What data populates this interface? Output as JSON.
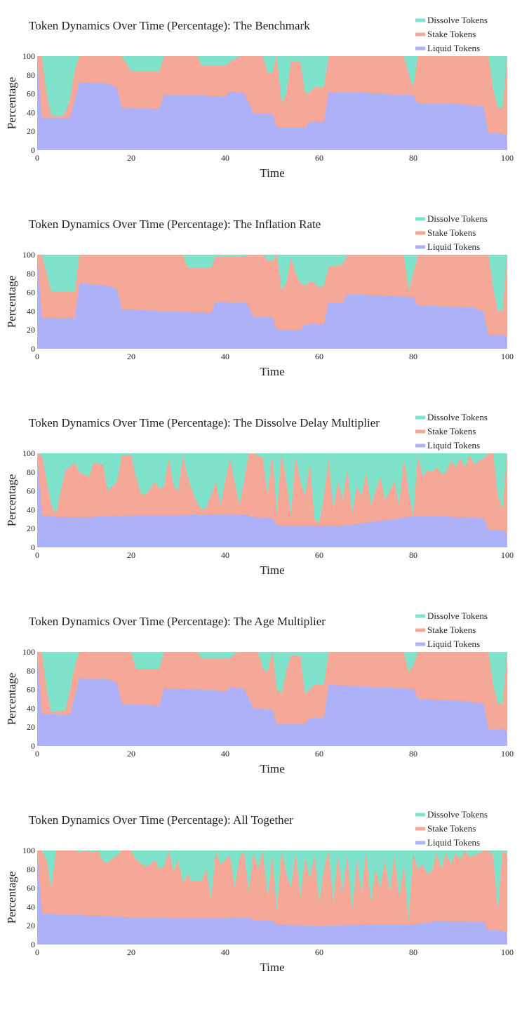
{
  "colors": {
    "dissolve": "#7fe3cb",
    "stake": "#f5a898",
    "liquid": "#adb1f8",
    "text": "#222222"
  },
  "chart_data": [
    {
      "type": "area",
      "title": "Token Dynamics Over Time (Percentage): The Benchmark",
      "xlabel": "Time",
      "ylabel": "Percentage",
      "xlim": [
        0,
        100
      ],
      "ylim": [
        0,
        100
      ],
      "xticks": [
        "0",
        "20",
        "40",
        "60",
        "80",
        "100"
      ],
      "yticks": [
        "0",
        "20",
        "40",
        "60",
        "80",
        "100"
      ],
      "legend_position": "top-right",
      "stacked_normalized": true,
      "series": [
        {
          "name": "Liquid Tokens",
          "color": "#adb1f8",
          "x": [
            0,
            1,
            7,
            9,
            15,
            17,
            18,
            26,
            27,
            35,
            40,
            41,
            44,
            46,
            50,
            51,
            57,
            58,
            61,
            62,
            70,
            80,
            81,
            90,
            95,
            96,
            99,
            100
          ],
          "y": [
            100,
            34,
            34,
            72,
            71,
            66,
            45,
            44,
            59,
            58,
            57,
            62,
            61,
            39,
            39,
            24,
            24,
            30,
            30,
            62,
            61,
            58,
            50,
            49,
            46,
            18,
            18,
            15
          ]
        },
        {
          "name": "Stake Tokens",
          "color": "#f5a898",
          "x": [
            0,
            1,
            2,
            3,
            5,
            6,
            7,
            8,
            9,
            18,
            20,
            26,
            27,
            34,
            35,
            40,
            43,
            48,
            49,
            50,
            51,
            52,
            53,
            54,
            56,
            57,
            58,
            59,
            61,
            62,
            78,
            79,
            80,
            81,
            95,
            96,
            97,
            98,
            99,
            100
          ],
          "y": [
            100,
            100,
            60,
            37,
            36,
            40,
            55,
            85,
            100,
            100,
            84,
            84,
            100,
            100,
            90,
            90,
            100,
            100,
            82,
            82,
            100,
            50,
            60,
            94,
            94,
            60,
            62,
            67,
            67,
            100,
            100,
            82,
            67,
            100,
            100,
            100,
            65,
            45,
            45,
            100
          ]
        }
      ]
    },
    {
      "type": "area",
      "title": "Token Dynamics Over Time (Percentage): The Inflation Rate",
      "xlabel": "Time",
      "ylabel": "Percentage",
      "xlim": [
        0,
        100
      ],
      "ylim": [
        0,
        100
      ],
      "xticks": [
        "0",
        "20",
        "40",
        "60",
        "80",
        "100"
      ],
      "yticks": [
        "0",
        "20",
        "40",
        "60",
        "80",
        "100"
      ],
      "legend_position": "top-right",
      "stacked_normalized": true,
      "series": [
        {
          "name": "Liquid Tokens",
          "color": "#adb1f8",
          "x": [
            0,
            1,
            8,
            9,
            15,
            17,
            18,
            37,
            38,
            43,
            44,
            45,
            46,
            50,
            51,
            56,
            57,
            61,
            62,
            65,
            66,
            80,
            81,
            93,
            95,
            96,
            99,
            100
          ],
          "y": [
            100,
            33,
            32,
            70,
            67,
            63,
            42,
            38,
            50,
            49,
            50,
            45,
            34,
            34,
            20,
            20,
            26,
            26,
            49,
            49,
            58,
            55,
            46,
            44,
            39,
            15,
            15,
            12
          ]
        },
        {
          "name": "Stake Tokens",
          "color": "#f5a898",
          "x": [
            0,
            1,
            2,
            3,
            8,
            9,
            31,
            32,
            37,
            38,
            44,
            45,
            48,
            49,
            50,
            51,
            52,
            53,
            54,
            55,
            56,
            57,
            58,
            59,
            60,
            61,
            62,
            63,
            65,
            66,
            78,
            79,
            80,
            81,
            95,
            96,
            97,
            98,
            99,
            100
          ],
          "y": [
            100,
            100,
            80,
            61,
            61,
            100,
            100,
            86,
            86,
            98,
            98,
            100,
            100,
            94,
            94,
            100,
            62,
            70,
            97,
            80,
            70,
            67,
            72,
            70,
            65,
            67,
            88,
            88,
            90,
            100,
            100,
            62,
            80,
            100,
            100,
            100,
            65,
            40,
            40,
            100
          ]
        }
      ]
    },
    {
      "type": "area",
      "title": "Token Dynamics Over Time (Percentage): The Dissolve Delay Multiplier",
      "xlabel": "Time",
      "ylabel": "Percentage",
      "xlim": [
        0,
        100
      ],
      "ylim": [
        0,
        100
      ],
      "xticks": [
        "0",
        "20",
        "40",
        "60",
        "80",
        "100"
      ],
      "yticks": [
        "0",
        "20",
        "40",
        "60",
        "80",
        "100"
      ],
      "legend_position": "top-right",
      "stacked_normalized": true,
      "series": [
        {
          "name": "Liquid Tokens",
          "color": "#adb1f8",
          "x": [
            0,
            1,
            5,
            10,
            20,
            30,
            40,
            45,
            46,
            50,
            51,
            60,
            65,
            70,
            80,
            85,
            90,
            95,
            96,
            99,
            100
          ],
          "y": [
            100,
            34,
            32,
            32,
            34,
            34,
            35,
            34,
            32,
            31,
            23,
            23,
            23,
            26,
            33,
            33,
            32,
            31,
            18,
            18,
            15
          ]
        },
        {
          "name": "Stake Tokens",
          "color": "#f5a898",
          "x": [
            0,
            1,
            3,
            4,
            5,
            6,
            8,
            9,
            11,
            12,
            14,
            15,
            17,
            18,
            20,
            21,
            22,
            23,
            24,
            25,
            26,
            27,
            28,
            29,
            30,
            31,
            32,
            33,
            34,
            35,
            36,
            38,
            39,
            40,
            41,
            43,
            44,
            45,
            46,
            48,
            49,
            50,
            51,
            52,
            53,
            54,
            55,
            56,
            57,
            58,
            59,
            60,
            61,
            62,
            63,
            64,
            65,
            66,
            67,
            68,
            69,
            70,
            71,
            72,
            73,
            74,
            75,
            76,
            77,
            78,
            79,
            80,
            81,
            82,
            83,
            84,
            85,
            86,
            87,
            88,
            89,
            90,
            91,
            92,
            93,
            94,
            95,
            96,
            97,
            98,
            99,
            100
          ],
          "y": [
            100,
            98,
            45,
            35,
            60,
            82,
            90,
            80,
            75,
            90,
            88,
            60,
            70,
            98,
            98,
            75,
            58,
            55,
            62,
            70,
            62,
            65,
            95,
            65,
            60,
            97,
            75,
            60,
            48,
            40,
            42,
            70,
            45,
            70,
            95,
            45,
            70,
            100,
            100,
            95,
            55,
            100,
            35,
            100,
            70,
            35,
            97,
            70,
            55,
            90,
            30,
            25,
            55,
            95,
            40,
            70,
            50,
            85,
            35,
            65,
            55,
            80,
            45,
            60,
            75,
            50,
            60,
            70,
            45,
            95,
            60,
            33,
            98,
            75,
            82,
            80,
            85,
            78,
            80,
            92,
            85,
            95,
            85,
            98,
            88,
            92,
            95,
            100,
            100,
            55,
            40,
            100
          ]
        }
      ]
    },
    {
      "type": "area",
      "title": "Token Dynamics Over Time (Percentage): The Age Multiplier",
      "xlabel": "Time",
      "ylabel": "Percentage",
      "xlim": [
        0,
        100
      ],
      "ylim": [
        0,
        100
      ],
      "xticks": [
        "0",
        "20",
        "40",
        "60",
        "80",
        "100"
      ],
      "yticks": [
        "0",
        "20",
        "40",
        "60",
        "80",
        "100"
      ],
      "legend_position": "top-right",
      "stacked_normalized": true,
      "series": [
        {
          "name": "Liquid Tokens",
          "color": "#adb1f8",
          "x": [
            0,
            1,
            7,
            9,
            15,
            17,
            18,
            26,
            27,
            35,
            40,
            41,
            44,
            46,
            50,
            51,
            57,
            58,
            61,
            62,
            70,
            80,
            81,
            90,
            95,
            96,
            99,
            100
          ],
          "y": [
            100,
            34,
            33,
            72,
            71,
            67,
            45,
            43,
            61,
            60,
            58,
            62,
            61,
            40,
            39,
            23,
            23,
            30,
            30,
            65,
            63,
            61,
            50,
            48,
            45,
            18,
            18,
            15
          ]
        },
        {
          "name": "Stake Tokens",
          "color": "#f5a898",
          "x": [
            0,
            1,
            2,
            3,
            5,
            6,
            7,
            8,
            9,
            20,
            21,
            26,
            27,
            34,
            35,
            41,
            42,
            43,
            47,
            48,
            49,
            50,
            51,
            52,
            53,
            54,
            56,
            57,
            58,
            59,
            61,
            62,
            78,
            79,
            80,
            81,
            95,
            96,
            97,
            98,
            99,
            100
          ],
          "y": [
            100,
            100,
            60,
            36,
            37,
            38,
            60,
            85,
            100,
            100,
            82,
            82,
            100,
            100,
            93,
            93,
            98,
            100,
            100,
            82,
            78,
            100,
            60,
            55,
            80,
            96,
            96,
            55,
            60,
            65,
            65,
            100,
            100,
            78,
            85,
            100,
            100,
            100,
            65,
            45,
            45,
            100
          ]
        }
      ]
    },
    {
      "type": "area",
      "title": "Token Dynamics Over Time (Percentage): All Together",
      "xlabel": "Time",
      "ylabel": "Percentage",
      "xlim": [
        0,
        100
      ],
      "ylim": [
        0,
        100
      ],
      "xticks": [
        "0",
        "20",
        "40",
        "60",
        "80",
        "100"
      ],
      "yticks": [
        "0",
        "20",
        "40",
        "60",
        "80",
        "100"
      ],
      "legend_position": "top-right",
      "stacked_normalized": true,
      "series": [
        {
          "name": "Liquid Tokens",
          "color": "#adb1f8",
          "x": [
            0,
            1,
            10,
            20,
            30,
            40,
            45,
            46,
            50,
            51,
            60,
            70,
            80,
            85,
            95,
            96,
            99,
            100
          ],
          "y": [
            100,
            33,
            31,
            29,
            28,
            28,
            29,
            26,
            25,
            21,
            20,
            21,
            21,
            25,
            24,
            15,
            15,
            12
          ]
        },
        {
          "name": "Stake Tokens",
          "color": "#f5a898",
          "x": [
            0,
            1,
            2,
            3,
            4,
            5,
            8,
            9,
            10,
            12,
            13,
            14,
            15,
            17,
            18,
            20,
            21,
            23,
            24,
            25,
            26,
            27,
            28,
            29,
            30,
            31,
            32,
            33,
            35,
            36,
            37,
            38,
            39,
            40,
            41,
            42,
            43,
            44,
            45,
            46,
            47,
            48,
            49,
            50,
            51,
            52,
            53,
            54,
            55,
            56,
            57,
            58,
            59,
            60,
            61,
            62,
            63,
            64,
            65,
            66,
            67,
            68,
            69,
            70,
            71,
            72,
            73,
            74,
            75,
            76,
            77,
            78,
            79,
            80,
            81,
            82,
            83,
            84,
            85,
            86,
            87,
            88,
            89,
            90,
            91,
            92,
            93,
            94,
            95,
            96,
            97,
            98,
            99,
            100
          ],
          "y": [
            100,
            100,
            90,
            60,
            100,
            100,
            100,
            98,
            100,
            98,
            100,
            88,
            87,
            95,
            100,
            100,
            90,
            83,
            85,
            90,
            80,
            83,
            100,
            78,
            90,
            65,
            75,
            67,
            68,
            80,
            48,
            100,
            85,
            90,
            95,
            60,
            92,
            100,
            55,
            98,
            80,
            100,
            50,
            95,
            35,
            100,
            75,
            60,
            98,
            50,
            92,
            70,
            95,
            45,
            80,
            100,
            45,
            95,
            55,
            97,
            35,
            90,
            55,
            100,
            45,
            80,
            60,
            90,
            55,
            95,
            50,
            85,
            25,
            97,
            80,
            85,
            75,
            78,
            98,
            80,
            98,
            85,
            97,
            90,
            100,
            93,
            95,
            97,
            100,
            100,
            95,
            35,
            100,
            95
          ]
        }
      ]
    }
  ]
}
